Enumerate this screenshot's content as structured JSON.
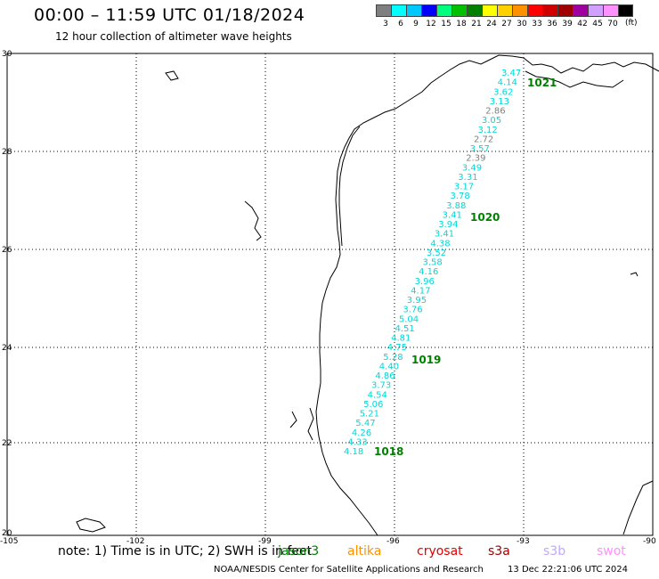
{
  "header": {
    "title": "00:00 – 11:59 UTC 01/18/2024",
    "subtitle": "12 hour collection of altimeter wave heights"
  },
  "legend": {
    "colors": [
      "#7f7f7f",
      "#00ffff",
      "#00c8ff",
      "#0000ff",
      "#00ff7f",
      "#00c000",
      "#008000",
      "#ffff00",
      "#ffd000",
      "#ff9000",
      "#ff0000",
      "#d00000",
      "#a00000",
      "#a000a0",
      "#d0a0ff",
      "#ff90ff",
      "#000000"
    ],
    "labels": [
      "3",
      "6",
      "9",
      "12",
      "15",
      "18",
      "21",
      "24",
      "27",
      "30",
      "33",
      "36",
      "39",
      "42",
      "45",
      "70"
    ],
    "unit": "(ft)"
  },
  "axes": {
    "lat_labels": [
      "30",
      "28",
      "26",
      "24",
      "22",
      "20"
    ],
    "lon_labels": [
      "-105",
      "-102",
      "-99",
      "-96",
      "-93",
      "-90"
    ]
  },
  "wave_labels": [
    {
      "text": "3.47",
      "color": "#00d8d8"
    },
    {
      "text": "4.14",
      "color": "#00d8d8"
    },
    {
      "text": "3.62",
      "color": "#00d8d8"
    },
    {
      "text": "3.13",
      "color": "#00d8d8"
    },
    {
      "text": "2.86",
      "color": "#7f7f7f"
    },
    {
      "text": "3.05",
      "color": "#00d8d8"
    },
    {
      "text": "3.12",
      "color": "#00d8d8"
    },
    {
      "text": "2.72",
      "color": "#7f7f7f"
    },
    {
      "text": "3.57",
      "color": "#00d8d8"
    },
    {
      "text": "2.39",
      "color": "#7f7f7f"
    },
    {
      "text": "3.49",
      "color": "#00d8d8"
    },
    {
      "text": "3.31",
      "color": "#00d8d8"
    },
    {
      "text": "3.17",
      "color": "#00d8d8"
    },
    {
      "text": "3.78",
      "color": "#00d8d8"
    },
    {
      "text": "3.88",
      "color": "#00d8d8"
    },
    {
      "text": "3.41",
      "color": "#00d8d8"
    },
    {
      "text": "3.94",
      "color": "#00d8d8"
    },
    {
      "text": "3.41",
      "color": "#00d8d8"
    },
    {
      "text": "4.38",
      "color": "#00d8d8"
    },
    {
      "text": "3.52",
      "color": "#00d8d8"
    },
    {
      "text": "3.58",
      "color": "#00d8d8"
    },
    {
      "text": "4.16",
      "color": "#00d8d8"
    },
    {
      "text": "3.96",
      "color": "#00d8d8"
    },
    {
      "text": "4.17",
      "color": "#00d8d8"
    },
    {
      "text": "3.95",
      "color": "#00d8d8"
    },
    {
      "text": "3.76",
      "color": "#00d8d8"
    },
    {
      "text": "5.04",
      "color": "#00d8d8"
    },
    {
      "text": "4.51",
      "color": "#00d8d8"
    },
    {
      "text": "4.81",
      "color": "#00d8d8"
    },
    {
      "text": "4.75",
      "color": "#00d8d8"
    },
    {
      "text": "5.28",
      "color": "#00d8d8"
    },
    {
      "text": "4.40",
      "color": "#00d8d8"
    },
    {
      "text": "4.86",
      "color": "#00d8d8"
    },
    {
      "text": "3.73",
      "color": "#00d8d8"
    },
    {
      "text": "4.54",
      "color": "#00d8d8"
    },
    {
      "text": "5.06",
      "color": "#00d8d8"
    },
    {
      "text": "5.21",
      "color": "#00d8d8"
    },
    {
      "text": "5.47",
      "color": "#00d8d8"
    },
    {
      "text": "4.26",
      "color": "#00d8d8"
    },
    {
      "text": "4.33",
      "color": "#00d8d8"
    },
    {
      "text": "4.18",
      "color": "#00d8d8"
    }
  ],
  "time_labels": [
    "1021",
    "1020",
    "1019",
    "1018"
  ],
  "footer": {
    "note": "note:  1) Time is in UTC; 2) SWH is in feet",
    "missions": [
      {
        "text": "jason3",
        "color": "#008000"
      },
      {
        "text": "altika",
        "color": "#ff9000"
      },
      {
        "text": "cryosat",
        "color": "#e00000"
      },
      {
        "text": "s3a",
        "color": "#a00000"
      },
      {
        "text": "s3b",
        "color": "#c0a8ff"
      },
      {
        "text": "swot",
        "color": "#ff90ff"
      }
    ],
    "credit": "NOAA/NESDIS Center for Satellite Applications and Research",
    "timestamp": "13 Dec 22:21:06 UTC 2024"
  }
}
